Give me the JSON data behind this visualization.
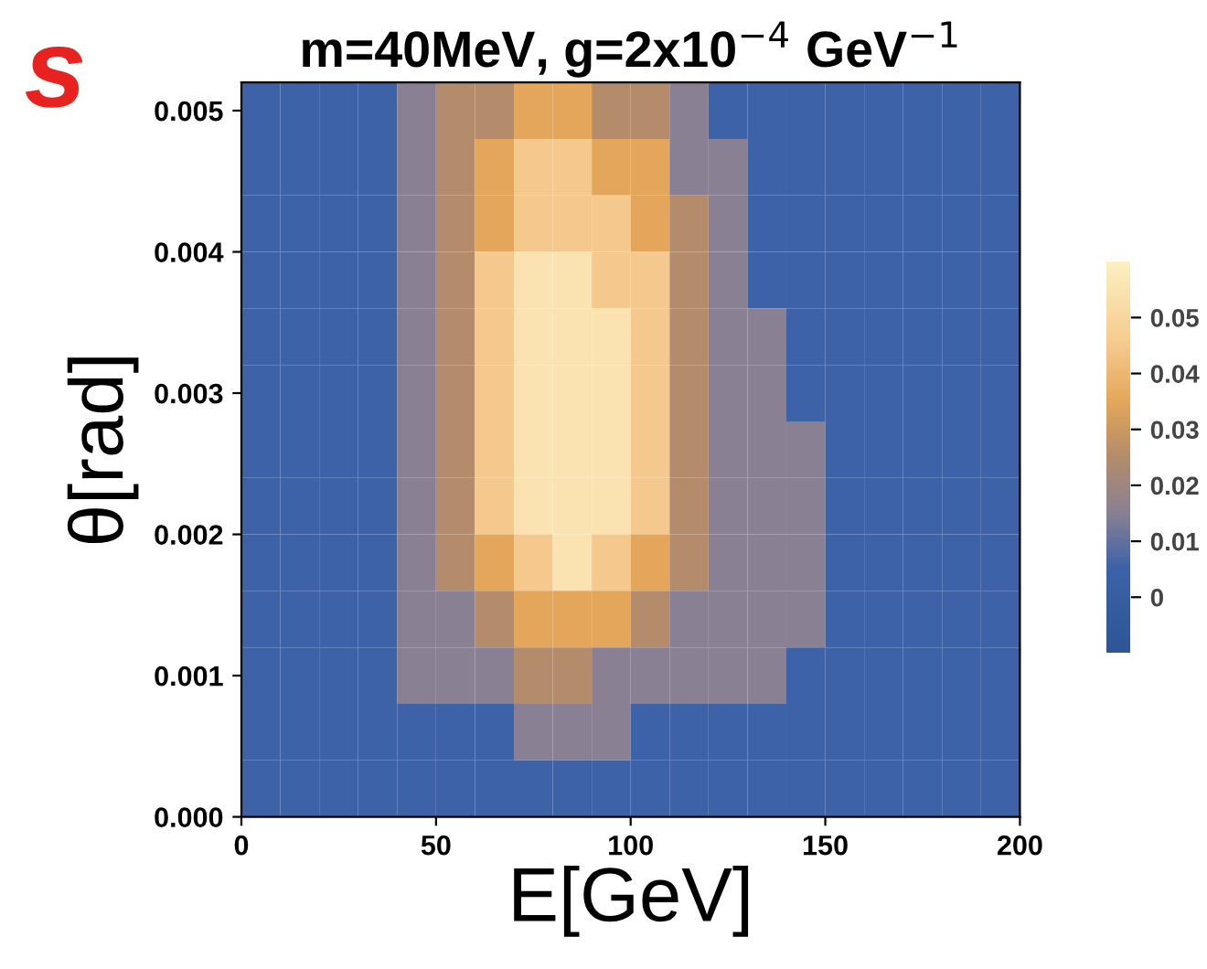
{
  "chart_data": {
    "type": "heatmap",
    "title": "m=40MeV, g=2x10$^{−4}$ GeV$^{−1}$",
    "xlabel": "E[GeV]",
    "ylabel": "θ[rad]",
    "annotations": [
      "s"
    ],
    "x": [
      5,
      15,
      25,
      35,
      45,
      55,
      65,
      75,
      85,
      95,
      105,
      115,
      125,
      135,
      145,
      155,
      165,
      175,
      185,
      195
    ],
    "y": [
      0.005,
      0.0046,
      0.0042,
      0.0038,
      0.0034,
      0.003,
      0.0026,
      0.0022,
      0.0018,
      0.0014,
      0.001,
      0.0006,
      0.0002
    ],
    "cells": [
      [
        0.005,
        0.005,
        0.005,
        0.005,
        0.015,
        0.025,
        0.025,
        0.035,
        0.035,
        0.025,
        0.025,
        0.015,
        0.005,
        0.005,
        0.005,
        0.005,
        0.005,
        0.005,
        0.005,
        0.005
      ],
      [
        0.005,
        0.005,
        0.005,
        0.005,
        0.015,
        0.025,
        0.035,
        0.045,
        0.045,
        0.035,
        0.035,
        0.015,
        0.015,
        0.005,
        0.005,
        0.005,
        0.005,
        0.005,
        0.005,
        0.005
      ],
      [
        0.005,
        0.005,
        0.005,
        0.005,
        0.015,
        0.025,
        0.035,
        0.045,
        0.045,
        0.045,
        0.035,
        0.025,
        0.015,
        0.005,
        0.005,
        0.005,
        0.005,
        0.005,
        0.005,
        0.005
      ],
      [
        0.005,
        0.005,
        0.005,
        0.005,
        0.015,
        0.025,
        0.045,
        0.055,
        0.055,
        0.045,
        0.045,
        0.025,
        0.015,
        0.005,
        0.005,
        0.005,
        0.005,
        0.005,
        0.005,
        0.005
      ],
      [
        0.005,
        0.005,
        0.005,
        0.005,
        0.015,
        0.025,
        0.045,
        0.055,
        0.055,
        0.055,
        0.045,
        0.025,
        0.015,
        0.015,
        0.005,
        0.005,
        0.005,
        0.005,
        0.005,
        0.005
      ],
      [
        0.005,
        0.005,
        0.005,
        0.005,
        0.015,
        0.025,
        0.045,
        0.055,
        0.055,
        0.055,
        0.045,
        0.025,
        0.015,
        0.015,
        0.005,
        0.005,
        0.005,
        0.005,
        0.005,
        0.005
      ],
      [
        0.005,
        0.005,
        0.005,
        0.005,
        0.015,
        0.025,
        0.045,
        0.055,
        0.055,
        0.055,
        0.045,
        0.025,
        0.015,
        0.015,
        0.015,
        0.005,
        0.005,
        0.005,
        0.005,
        0.005
      ],
      [
        0.005,
        0.005,
        0.005,
        0.005,
        0.015,
        0.025,
        0.045,
        0.055,
        0.055,
        0.055,
        0.045,
        0.025,
        0.015,
        0.015,
        0.015,
        0.005,
        0.005,
        0.005,
        0.005,
        0.005
      ],
      [
        0.005,
        0.005,
        0.005,
        0.005,
        0.015,
        0.025,
        0.035,
        0.045,
        0.055,
        0.045,
        0.035,
        0.025,
        0.015,
        0.015,
        0.015,
        0.005,
        0.005,
        0.005,
        0.005,
        0.005
      ],
      [
        0.005,
        0.005,
        0.005,
        0.005,
        0.015,
        0.015,
        0.025,
        0.035,
        0.035,
        0.035,
        0.025,
        0.015,
        0.015,
        0.015,
        0.015,
        0.005,
        0.005,
        0.005,
        0.005,
        0.005
      ],
      [
        0.005,
        0.005,
        0.005,
        0.005,
        0.015,
        0.015,
        0.015,
        0.025,
        0.025,
        0.015,
        0.015,
        0.015,
        0.015,
        0.015,
        0.005,
        0.005,
        0.005,
        0.005,
        0.005,
        0.005
      ],
      [
        0.005,
        0.005,
        0.005,
        0.005,
        0.005,
        0.005,
        0.005,
        0.015,
        0.015,
        0.015,
        0.005,
        0.005,
        0.005,
        0.005,
        0.005,
        0.005,
        0.005,
        0.005,
        0.005,
        0.005
      ],
      [
        0.005,
        0.005,
        0.005,
        0.005,
        0.005,
        0.005,
        0.005,
        0.005,
        0.005,
        0.005,
        0.005,
        0.005,
        0.005,
        0.005,
        0.005,
        0.005,
        0.005,
        0.005,
        0.005,
        0.005
      ]
    ],
    "colors": [
      "#2e5596",
      "#3d62a8",
      "#8a8093",
      "#b38c6c",
      "#e4a65a",
      "#f5c98c",
      "#fdf0c2"
    ],
    "clim": [
      -0.01,
      0.06
    ],
    "cticks": [
      0,
      0.01,
      0.02,
      0.03,
      0.04,
      0.05
    ],
    "xlim": [
      0,
      200
    ],
    "xticks": [
      0,
      50,
      100,
      150,
      200
    ],
    "ylim": [
      0,
      0.0052
    ],
    "yticks": [
      {
        "value": 0,
        "label": "0.000"
      },
      {
        "value": 0.001,
        "label": "0.001"
      },
      {
        "value": 0.002,
        "label": "0.002"
      },
      {
        "value": 0.003,
        "label": "0.003"
      },
      {
        "value": 0.004,
        "label": "0.004"
      },
      {
        "value": 0.005,
        "label": "0.005"
      }
    ],
    "grid": false
  }
}
